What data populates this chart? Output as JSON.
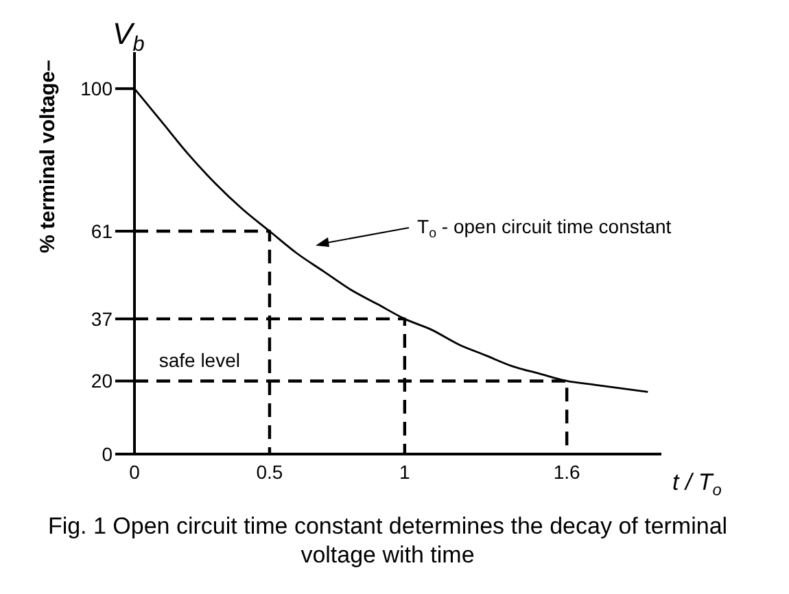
{
  "chart_data": {
    "type": "line",
    "title": "Fig. 1 Open circuit time constant determines the decay of terminal voltage with time",
    "xlabel": "t / T$_{o}$",
    "ylabel": "% terminal voltage–",
    "annotations": [
      "V$_{b}$",
      "T$_{o}$ - open circuit time constant",
      {
        "text": "safe level",
        "x": 0.05,
        "y": 20
      }
    ],
    "xlim": [
      0,
      1.95
    ],
    "xticks": [
      0,
      0.5,
      1,
      1.6
    ],
    "ylim": [
      0,
      110
    ],
    "yticks": [
      0,
      20,
      37,
      61,
      100
    ],
    "grid": false,
    "marker": "none",
    "series": [
      {
        "color": "#000000",
        "line_style": "solid",
        "x": [
          0,
          0.1,
          0.2,
          0.3,
          0.4,
          0.5,
          0.6,
          0.7,
          0.8,
          0.9,
          1,
          1.1,
          1.2,
          1.3,
          1.4,
          1.5,
          1.6,
          1.7,
          1.8,
          1.9
        ],
        "values": [
          100,
          91,
          82,
          74,
          67,
          61,
          55,
          50,
          45,
          41,
          37,
          34,
          30,
          27,
          24,
          22,
          20,
          19,
          18,
          17
        ]
      },
      {
        "color": "#000000",
        "line_style": "dashed",
        "x": [
          0,
          0.5,
          0.5
        ],
        "values": [
          61,
          61,
          0
        ]
      },
      {
        "color": "#000000",
        "line_style": "dashed",
        "x": [
          0,
          1,
          1
        ],
        "values": [
          37,
          37,
          0
        ]
      },
      {
        "color": "#000000",
        "line_style": "dashed",
        "x": [
          0,
          1.6,
          1.6
        ],
        "values": [
          20,
          20,
          0
        ]
      }
    ]
  }
}
